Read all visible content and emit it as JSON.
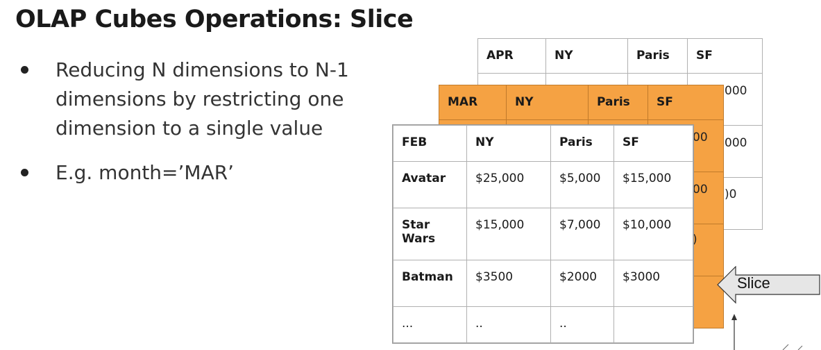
{
  "title": "OLAP Cubes Operations: Slice",
  "bullets": [
    "Reducing N dimensions to N-1 dimensions by restricting one dimension to a single value",
    "E.g. month=’MAR’"
  ],
  "back_table": {
    "headers": [
      "APR",
      "NY",
      "Paris",
      "SF"
    ]
  },
  "mid_table": {
    "headers": [
      "MAR",
      "NY",
      "Paris",
      "SF"
    ]
  },
  "front_table": {
    "headers": [
      "FEB",
      "NY",
      "Paris",
      "SF"
    ],
    "rows": [
      [
        "Avatar",
        "$25,000",
        "$5,000",
        "$15,000"
      ],
      [
        "Star Wars",
        "$15,000",
        "$7,000",
        "$10,000"
      ],
      [
        "Batman",
        "$3500",
        "$2000",
        "$3000"
      ],
      [
        "...",
        "..",
        "..",
        ""
      ]
    ]
  },
  "peeking_fragments": {
    "apr_row1": "000",
    "apr_row2": "000",
    "apr_row3": ")0",
    "mar_row1": "00",
    "mar_row2": "00",
    "mar_row3": ")"
  },
  "callout": {
    "label": "Slice"
  },
  "colors": {
    "slice_fill": "#f5a243",
    "arrow_fill": "#e6e6e6"
  }
}
